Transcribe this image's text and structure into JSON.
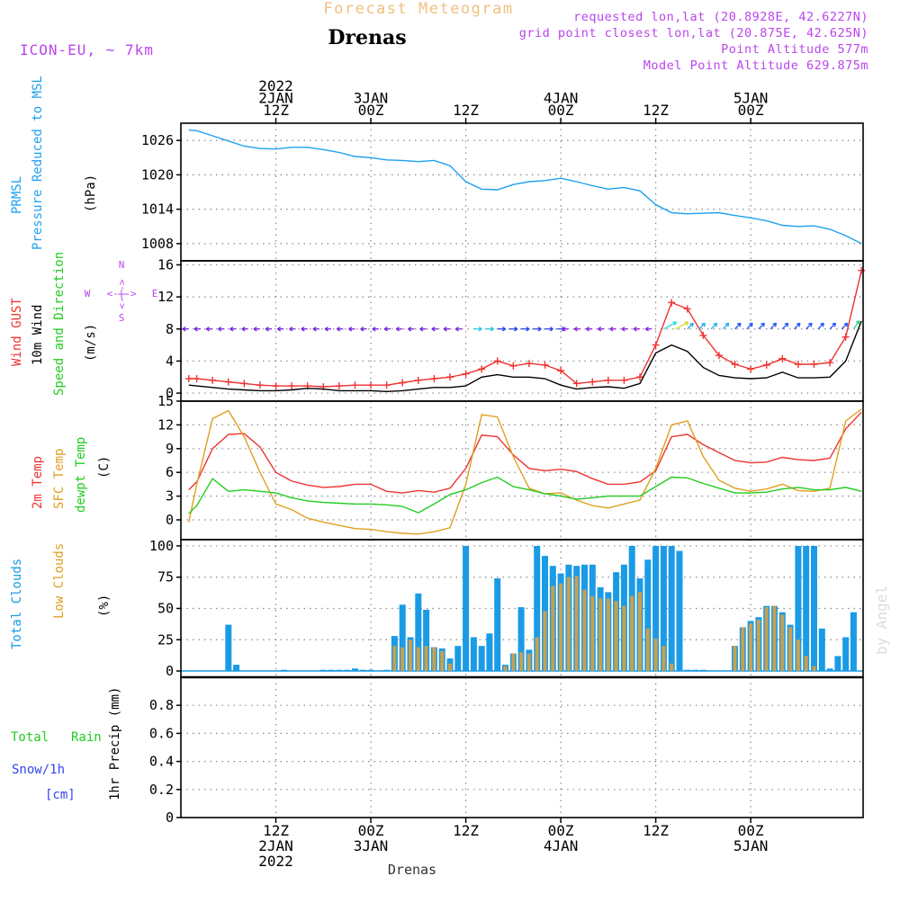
{
  "header": {
    "product": "Forecast Meteogram",
    "location": "Drenas",
    "model": "ICON-EU, ~ 7km",
    "requested": "requested lon,lat (20.8928E, 42.6227N)",
    "grid_point": "grid point closest lon,lat (20.875E, 42.625N)",
    "point_altitude": "Point Altitude 577m",
    "model_altitude": "Model Point Altitude 629.875m",
    "footer_location": "Drenas",
    "watermark": "by Angel"
  },
  "time_axis": {
    "top_ticks": [
      {
        "h": 12,
        "lines": [
          "2022",
          "2JAN",
          "12Z"
        ]
      },
      {
        "h": 24,
        "lines": [
          "3JAN",
          "00Z"
        ]
      },
      {
        "h": 36,
        "lines": [
          "12Z"
        ]
      },
      {
        "h": 48,
        "lines": [
          "4JAN",
          "00Z"
        ]
      },
      {
        "h": 60,
        "lines": [
          "12Z"
        ]
      },
      {
        "h": 72,
        "lines": [
          "5JAN",
          "00Z"
        ]
      }
    ],
    "bottom_ticks": [
      {
        "h": 12,
        "lines": [
          "12Z",
          "2JAN",
          "2022"
        ]
      },
      {
        "h": 24,
        "lines": [
          "00Z",
          "3JAN"
        ]
      },
      {
        "h": 36,
        "lines": [
          "12Z"
        ]
      },
      {
        "h": 48,
        "lines": [
          "00Z",
          "4JAN"
        ]
      },
      {
        "h": 60,
        "lines": [
          "12Z"
        ]
      },
      {
        "h": 72,
        "lines": [
          "00Z",
          "5JAN"
        ]
      }
    ]
  },
  "panel_labels": {
    "pressure": [
      "PRMSL",
      "Pressure Reduced to MSL",
      "(hPa)"
    ],
    "wind": [
      "Wind GUST",
      "10m Wind",
      "Speed and Direction",
      "(m/s)"
    ],
    "compass": [
      "N",
      "S",
      "W",
      "E",
      "<-|->"
    ],
    "temp": [
      "2m Temp",
      "SFC Temp",
      "dewpt Temp",
      "(C)"
    ],
    "cloud": [
      "Total Clouds",
      "Low Clouds",
      "(%)"
    ],
    "precip": [
      "Total",
      "Rain",
      "Snow/1h",
      "[cm]",
      "1hr Precip (mm)"
    ]
  },
  "colors": {
    "pressure": "#1ea0f0",
    "gust": "#ee3333",
    "wind": "#000000",
    "arrows": "#7722dd",
    "t2m": "#ee3333",
    "tsfc": "#e0a020",
    "dewpt": "#22cc22",
    "total_cloud": "#1a9be6",
    "low_cloud": "#c8a050",
    "header_product": "#f0c080",
    "header_info": "#bb44ee",
    "total_label": "#22cc22",
    "snow_label": "#3344ee",
    "grid": "#888888"
  },
  "chart_data": [
    {
      "type": "line",
      "title": "PRMSL",
      "ylabel": "(hPa)",
      "ylim": [
        1005,
        1029
      ],
      "yticks": [
        1008,
        1014,
        1020,
        1026
      ],
      "x": [
        1,
        2,
        4,
        6,
        8,
        10,
        12,
        14,
        16,
        18,
        20,
        22,
        24,
        26,
        28,
        30,
        32,
        34,
        36,
        38,
        40,
        42,
        44,
        46,
        48,
        50,
        52,
        54,
        56,
        58,
        60,
        62,
        64,
        66,
        68,
        70,
        72,
        74,
        76,
        78,
        80,
        82,
        84,
        86
      ],
      "series": [
        {
          "name": "PRMSL",
          "values": [
            1027.8,
            1027.7,
            1026.8,
            1025.9,
            1025.0,
            1024.6,
            1024.5,
            1024.8,
            1024.8,
            1024.4,
            1023.9,
            1023.2,
            1023.0,
            1022.6,
            1022.5,
            1022.3,
            1022.5,
            1021.6,
            1018.8,
            1017.5,
            1017.4,
            1018.3,
            1018.8,
            1019.0,
            1019.4,
            1018.8,
            1018.1,
            1017.5,
            1017.8,
            1017.2,
            1014.8,
            1013.4,
            1013.2,
            1013.3,
            1013.4,
            1012.9,
            1012.5,
            1012.0,
            1011.2,
            1011.0,
            1011.1,
            1010.5,
            1009.4,
            1008.0
          ]
        }
      ]
    },
    {
      "type": "line",
      "title": "Wind GUST / 10m Wind",
      "ylabel": "(m/s)",
      "ylim": [
        -1,
        16.5
      ],
      "yticks": [
        0,
        4,
        8,
        12,
        16
      ],
      "x": [
        1,
        2,
        4,
        6,
        8,
        10,
        12,
        14,
        16,
        18,
        20,
        22,
        24,
        26,
        28,
        30,
        32,
        34,
        36,
        38,
        40,
        42,
        44,
        46,
        48,
        50,
        52,
        54,
        56,
        58,
        60,
        62,
        64,
        66,
        68,
        70,
        72,
        74,
        76,
        78,
        80,
        82,
        84,
        86
      ],
      "series": [
        {
          "name": "Wind GUST",
          "values": [
            1.8,
            1.8,
            1.6,
            1.4,
            1.2,
            1.0,
            0.9,
            0.9,
            0.9,
            0.8,
            0.9,
            1.0,
            1.0,
            1.0,
            1.3,
            1.6,
            1.8,
            2.0,
            2.4,
            3.0,
            4.0,
            3.4,
            3.7,
            3.5,
            2.8,
            1.2,
            1.4,
            1.6,
            1.6,
            2.0,
            6.0,
            11.3,
            10.5,
            7.2,
            4.7,
            3.6,
            3.0,
            3.5,
            4.3,
            3.6,
            3.6,
            3.8,
            7.0,
            15.3
          ]
        },
        {
          "name": "10m Wind",
          "values": [
            1.0,
            0.9,
            0.7,
            0.5,
            0.4,
            0.3,
            0.3,
            0.4,
            0.6,
            0.5,
            0.3,
            0.3,
            0.3,
            0.2,
            0.3,
            0.5,
            0.7,
            0.7,
            0.9,
            2.0,
            2.3,
            2.0,
            2.0,
            1.8,
            1.0,
            0.5,
            0.7,
            0.8,
            0.6,
            1.2,
            5.0,
            6.0,
            5.2,
            3.2,
            2.2,
            1.9,
            1.8,
            1.9,
            2.6,
            1.9,
            1.9,
            2.0,
            4.0,
            9.0
          ]
        }
      ]
    },
    {
      "type": "line",
      "title": "2m / SFC / dewpt Temp",
      "ylabel": "(C)",
      "ylim": [
        -2.5,
        15
      ],
      "yticks": [
        0,
        3,
        6,
        9,
        12,
        15
      ],
      "x": [
        1,
        2,
        4,
        6,
        8,
        10,
        12,
        14,
        16,
        18,
        20,
        22,
        24,
        26,
        28,
        30,
        32,
        34,
        36,
        38,
        40,
        42,
        44,
        46,
        48,
        50,
        52,
        54,
        56,
        58,
        60,
        62,
        64,
        66,
        68,
        70,
        72,
        74,
        76,
        78,
        80,
        82,
        84,
        86
      ],
      "series": [
        {
          "name": "2m Temp",
          "values": [
            3.8,
            4.8,
            9.0,
            10.8,
            10.9,
            9.2,
            6.0,
            4.9,
            4.4,
            4.1,
            4.2,
            4.5,
            4.5,
            3.6,
            3.4,
            3.7,
            3.5,
            4.0,
            6.5,
            10.7,
            10.5,
            8.2,
            6.5,
            6.2,
            6.4,
            6.1,
            5.2,
            4.5,
            4.5,
            4.8,
            6.2,
            10.5,
            10.8,
            9.5,
            8.5,
            7.5,
            7.2,
            7.3,
            7.9,
            7.6,
            7.5,
            7.8,
            11.5,
            13.6
          ]
        },
        {
          "name": "SFC Temp",
          "values": [
            -0.3,
            4.5,
            12.8,
            13.8,
            10.5,
            6.0,
            2.0,
            1.3,
            0.2,
            -0.3,
            -0.7,
            -1.1,
            -1.2,
            -1.5,
            -1.7,
            -1.8,
            -1.5,
            -1.0,
            4.5,
            13.3,
            13.0,
            8.0,
            4.0,
            3.3,
            3.4,
            2.5,
            1.8,
            1.5,
            2.0,
            2.5,
            6.5,
            12.0,
            12.5,
            8.0,
            5.0,
            4.0,
            3.6,
            3.9,
            4.5,
            3.7,
            3.6,
            4.0,
            12.5,
            14.0
          ]
        },
        {
          "name": "dewpt Temp",
          "values": [
            0.8,
            1.8,
            5.2,
            3.6,
            3.8,
            3.6,
            3.4,
            2.8,
            2.4,
            2.2,
            2.1,
            2.0,
            2.0,
            1.9,
            1.7,
            0.9,
            2.0,
            3.2,
            3.8,
            4.7,
            5.4,
            4.2,
            3.8,
            3.3,
            3.0,
            2.6,
            2.8,
            3.0,
            3.0,
            3.0,
            4.2,
            5.4,
            5.3,
            4.6,
            4.0,
            3.4,
            3.4,
            3.5,
            3.9,
            4.1,
            3.8,
            3.8,
            4.1,
            3.6
          ]
        }
      ]
    },
    {
      "type": "bar",
      "title": "Total / Low Clouds",
      "ylabel": "(%)",
      "ylim": [
        -5,
        105
      ],
      "yticks": [
        0,
        25,
        50,
        75,
        100
      ],
      "x": [
        6,
        7,
        13,
        18,
        19,
        20,
        21,
        22,
        23,
        24,
        25,
        26,
        27,
        28,
        29,
        30,
        31,
        32,
        33,
        34,
        35,
        36,
        37,
        38,
        39,
        40,
        41,
        42,
        43,
        44,
        45,
        46,
        47,
        48,
        49,
        50,
        51,
        52,
        53,
        54,
        55,
        56,
        57,
        58,
        59,
        60,
        61,
        62,
        63,
        64,
        65,
        66,
        70,
        71,
        72,
        73,
        74,
        75,
        76,
        77,
        78,
        79,
        80,
        81,
        82,
        83,
        84,
        85
      ],
      "series": [
        {
          "name": "Total Clouds",
          "values": [
            37,
            5,
            1,
            1,
            1,
            1,
            1,
            2,
            1,
            1,
            0,
            1,
            28,
            53,
            27,
            62,
            49,
            19,
            18,
            10,
            20,
            100,
            27,
            20,
            30,
            74,
            5,
            14,
            51,
            17,
            100,
            92,
            84,
            78,
            85,
            84,
            85,
            85,
            67,
            63,
            79,
            85,
            100,
            74,
            89,
            100,
            100,
            100,
            96,
            1,
            1,
            1,
            20,
            35,
            40,
            43,
            52,
            52,
            47,
            37,
            100,
            100,
            100,
            34,
            2,
            12,
            27,
            47
          ]
        },
        {
          "name": "Low Clouds",
          "values": [
            0,
            0,
            0,
            0,
            0,
            0,
            0,
            0,
            0,
            0,
            0,
            0,
            20,
            19,
            25,
            19,
            20,
            19,
            16,
            6,
            0,
            0,
            0,
            0,
            0,
            0,
            4,
            14,
            15,
            14,
            27,
            48,
            68,
            70,
            75,
            76,
            65,
            60,
            58,
            58,
            56,
            52,
            60,
            63,
            34,
            26,
            20,
            6,
            0,
            0,
            0,
            0,
            20,
            35,
            38,
            41,
            51,
            52,
            45,
            35,
            25,
            12,
            4,
            0,
            0,
            0,
            0,
            0
          ]
        }
      ]
    },
    {
      "type": "bar",
      "title": "1hr Precip",
      "ylabel": "1hr Precip (mm)",
      "ylim": [
        0,
        1
      ],
      "yticks": [
        0,
        0.2,
        0.4,
        0.6,
        0.8
      ],
      "x": [],
      "series": []
    }
  ]
}
